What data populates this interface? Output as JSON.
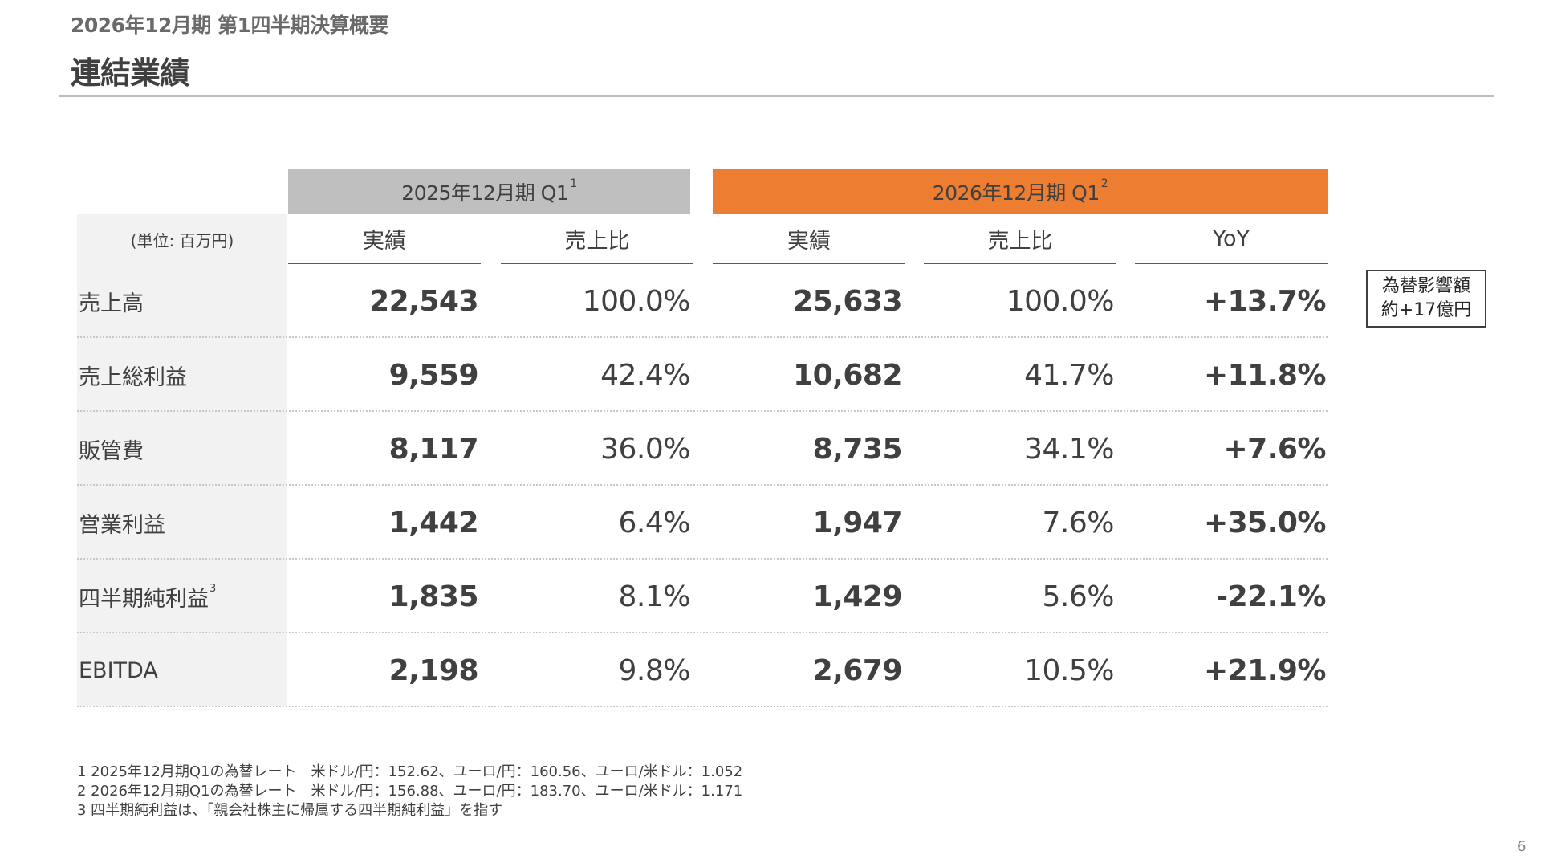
{
  "header": {
    "supertitle": "2026年12月期 第1四半期決算概要",
    "title": "連結業績"
  },
  "table": {
    "group_2025": {
      "label": "2025年12月期 Q1",
      "note": "1"
    },
    "group_2026": {
      "label": "2026年12月期 Q1",
      "note": "2"
    },
    "unit": "(単位: 百万円)",
    "col_headers": [
      "実績",
      "売上比",
      "実績",
      "売上比",
      "YoY"
    ],
    "rows": [
      {
        "label": "売上高",
        "note": "",
        "a2025": "22,543",
        "r2025": "100.0%",
        "a2026": "25,633",
        "r2026": "100.0%",
        "yoy": "+13.7%"
      },
      {
        "label": "売上総利益",
        "note": "",
        "a2025": "9,559",
        "r2025": "42.4%",
        "a2026": "10,682",
        "r2026": "41.7%",
        "yoy": "+11.8%"
      },
      {
        "label": "販管費",
        "note": "",
        "a2025": "8,117",
        "r2025": "36.0%",
        "a2026": "8,735",
        "r2026": "34.1%",
        "yoy": "+7.6%"
      },
      {
        "label": "営業利益",
        "note": "",
        "a2025": "1,442",
        "r2025": "6.4%",
        "a2026": "1,947",
        "r2026": "7.6%",
        "yoy": "+35.0%"
      },
      {
        "label": "四半期純利益",
        "note": "3",
        "a2025": "1,835",
        "r2025": "8.1%",
        "a2026": "1,429",
        "r2026": "5.6%",
        "yoy": "-22.1%"
      },
      {
        "label": "EBITDA",
        "note": "",
        "a2025": "2,198",
        "r2025": "9.8%",
        "a2026": "2,679",
        "r2026": "10.5%",
        "yoy": "+21.9%"
      }
    ]
  },
  "fx_box": {
    "line1": "為替影響額",
    "line2": "約+17億円"
  },
  "footnotes": [
    "1 2025年12月期Q1の為替レート　米ドル/円：152.62、ユーロ/円：160.56、ユーロ/米ドル：1.052",
    "2 2026年12月期Q1の為替レート　米ドル/円：156.88、ユーロ/円：183.70、ユーロ/米ドル：1.171",
    "3 四半期純利益は、「親会社株主に帰属する四半期純利益」を指す"
  ],
  "page_number": "6",
  "colors": {
    "accent": "#ed7d31",
    "prior_header": "#bfbfbf",
    "label_bg": "#f2f2f2"
  }
}
